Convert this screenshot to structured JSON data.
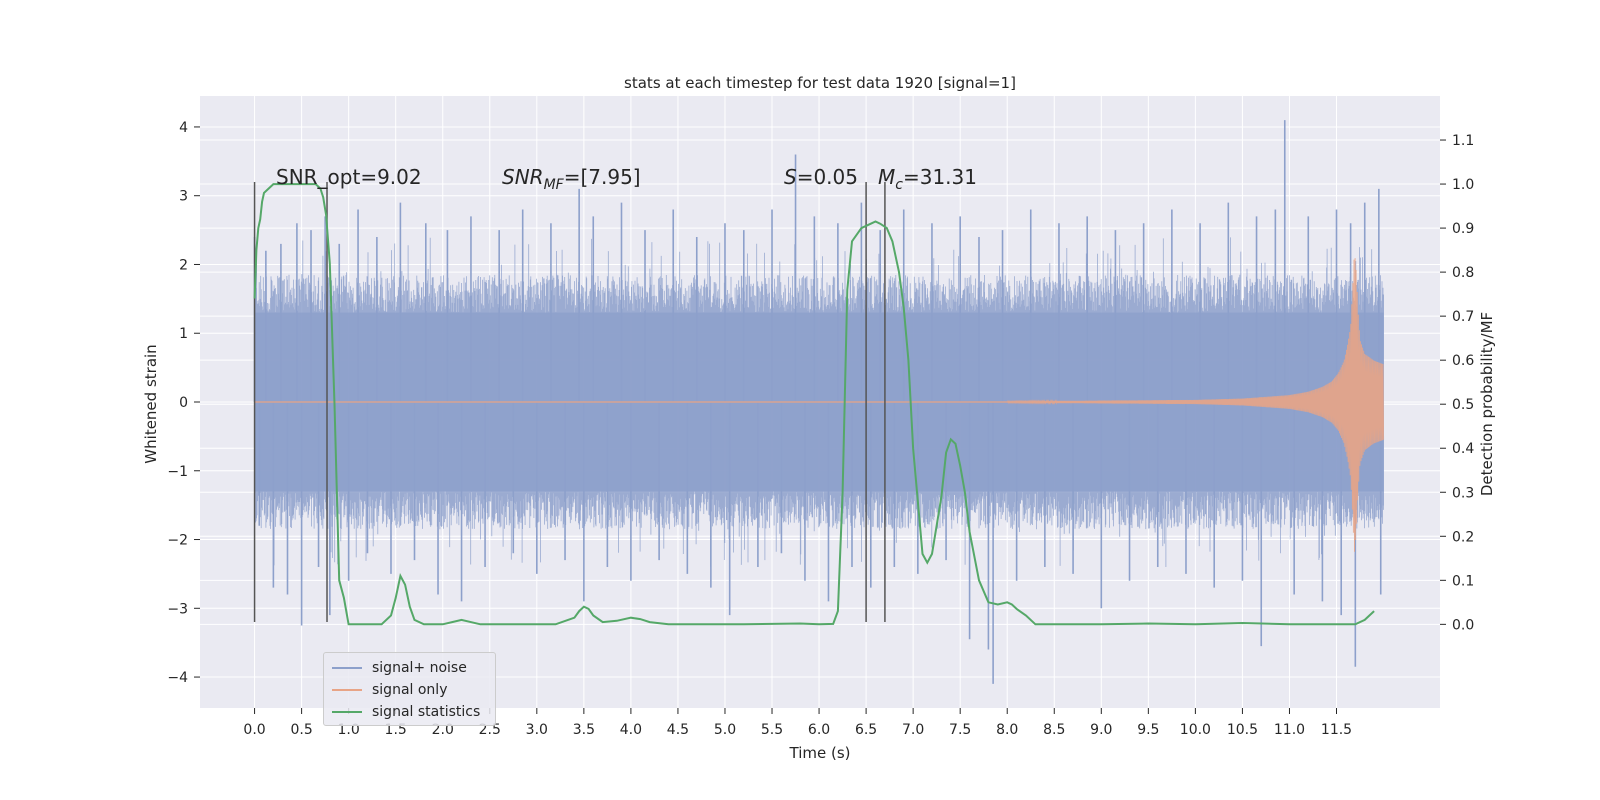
{
  "chart_data": {
    "type": "line",
    "title": "stats at each timestep for test data 1920 [signal=1]",
    "xlabel": "Time (s)",
    "ylabel": "Whitened strain",
    "ylabel_right": "Detection probability/MF",
    "xlim": [
      -0.58,
      12.6
    ],
    "ylim": [
      -4.45,
      4.45
    ],
    "ylim_right": [
      -0.19,
      1.2
    ],
    "x_ticks": [
      "0.0",
      "0.5",
      "1.0",
      "1.5",
      "2.0",
      "2.5",
      "3.0",
      "3.5",
      "4.0",
      "4.5",
      "5.0",
      "5.5",
      "6.0",
      "6.5",
      "7.0",
      "7.5",
      "8.0",
      "8.5",
      "9.0",
      "9.5",
      "10.0",
      "10.5",
      "11.0",
      "11.5"
    ],
    "x_tick_values": [
      0.0,
      0.5,
      1.0,
      1.5,
      2.0,
      2.5,
      3.0,
      3.5,
      4.0,
      4.5,
      5.0,
      5.5,
      6.0,
      6.5,
      7.0,
      7.5,
      8.0,
      8.5,
      9.0,
      9.5,
      10.0,
      10.5,
      11.0,
      11.5
    ],
    "y_ticks": [
      "4",
      "3",
      "2",
      "1",
      "0",
      "−1",
      "−2",
      "−3",
      "−4"
    ],
    "y_tick_values": [
      4,
      3,
      2,
      1,
      0,
      -1,
      -2,
      -3,
      -4
    ],
    "y_right_ticks": [
      "1.1",
      "1.0",
      "0.9",
      "0.8",
      "0.7",
      "0.6",
      "0.5",
      "0.4",
      "0.3",
      "0.2",
      "0.1",
      "0.0"
    ],
    "y_right_tick_values": [
      1.1,
      1.0,
      0.9,
      0.8,
      0.7,
      0.6,
      0.5,
      0.4,
      0.3,
      0.2,
      0.1,
      0.0
    ],
    "grid": true,
    "legend_position": "lower-left",
    "annotations": {
      "snr_opt": "SNR_opt=9.02",
      "snr_mf_base": "SNR",
      "snr_mf_sub": "MF",
      "snr_mf_value": "=[7.95]",
      "s_var": "S",
      "s_value": "=0.05",
      "mc_base": "M",
      "mc_sub": "c",
      "mc_value": "=31.31"
    },
    "vertical_lines": {
      "x": [
        0.0,
        0.77,
        6.5,
        6.7
      ],
      "y_range": [
        -3.2,
        3.2
      ]
    },
    "series": [
      {
        "name": "signal+ noise",
        "color": "#8da0cb",
        "x_range": [
          0.0,
          12.0
        ],
        "band": 1.3,
        "spikes": [
          {
            "x": 0.0,
            "y": 2.4
          },
          {
            "x": 0.05,
            "y": -1.8
          },
          {
            "x": 0.12,
            "y": 2.2
          },
          {
            "x": 0.2,
            "y": -2.7
          },
          {
            "x": 0.28,
            "y": 2.3
          },
          {
            "x": 0.35,
            "y": -2.8
          },
          {
            "x": 0.45,
            "y": 2.6
          },
          {
            "x": 0.5,
            "y": -3.25
          },
          {
            "x": 0.6,
            "y": 2.5
          },
          {
            "x": 0.68,
            "y": -2.4
          },
          {
            "x": 0.75,
            "y": 2.7
          },
          {
            "x": 0.8,
            "y": -3.1
          },
          {
            "x": 0.9,
            "y": 2.3
          },
          {
            "x": 1.0,
            "y": -2.6
          },
          {
            "x": 1.1,
            "y": 2.8
          },
          {
            "x": 1.2,
            "y": -2.2
          },
          {
            "x": 1.3,
            "y": 2.4
          },
          {
            "x": 1.45,
            "y": -2.5
          },
          {
            "x": 1.55,
            "y": 2.9
          },
          {
            "x": 1.7,
            "y": -2.3
          },
          {
            "x": 1.82,
            "y": 2.6
          },
          {
            "x": 1.95,
            "y": -2.8
          },
          {
            "x": 2.05,
            "y": 2.5
          },
          {
            "x": 2.2,
            "y": -2.9
          },
          {
            "x": 2.3,
            "y": 2.7
          },
          {
            "x": 2.45,
            "y": -2.4
          },
          {
            "x": 2.6,
            "y": 2.5
          },
          {
            "x": 2.75,
            "y": -2.2
          },
          {
            "x": 2.85,
            "y": 2.8
          },
          {
            "x": 3.0,
            "y": -2.5
          },
          {
            "x": 3.15,
            "y": 2.6
          },
          {
            "x": 3.3,
            "y": -2.3
          },
          {
            "x": 3.45,
            "y": 3.1
          },
          {
            "x": 3.5,
            "y": -2.9
          },
          {
            "x": 3.6,
            "y": 2.7
          },
          {
            "x": 3.75,
            "y": -2.4
          },
          {
            "x": 3.9,
            "y": 2.9
          },
          {
            "x": 4.0,
            "y": -2.6
          },
          {
            "x": 4.15,
            "y": 2.5
          },
          {
            "x": 4.3,
            "y": -2.3
          },
          {
            "x": 4.45,
            "y": 2.8
          },
          {
            "x": 4.6,
            "y": -2.5
          },
          {
            "x": 4.7,
            "y": 2.4
          },
          {
            "x": 4.85,
            "y": -2.7
          },
          {
            "x": 5.0,
            "y": 2.6
          },
          {
            "x": 5.05,
            "y": -3.1
          },
          {
            "x": 5.2,
            "y": 2.5
          },
          {
            "x": 5.35,
            "y": -2.4
          },
          {
            "x": 5.5,
            "y": 2.8
          },
          {
            "x": 5.6,
            "y": -2.2
          },
          {
            "x": 5.75,
            "y": 3.6
          },
          {
            "x": 5.85,
            "y": -2.6
          },
          {
            "x": 5.95,
            "y": 2.7
          },
          {
            "x": 6.1,
            "y": -2.9
          },
          {
            "x": 6.2,
            "y": 2.6
          },
          {
            "x": 6.35,
            "y": -2.4
          },
          {
            "x": 6.45,
            "y": 2.9
          },
          {
            "x": 6.55,
            "y": -2.7
          },
          {
            "x": 6.65,
            "y": 2.5
          },
          {
            "x": 6.8,
            "y": -2.4
          },
          {
            "x": 6.9,
            "y": 2.8
          },
          {
            "x": 7.05,
            "y": -2.5
          },
          {
            "x": 7.2,
            "y": 2.6
          },
          {
            "x": 7.35,
            "y": -2.3
          },
          {
            "x": 7.5,
            "y": 2.7
          },
          {
            "x": 7.6,
            "y": -3.45
          },
          {
            "x": 7.7,
            "y": 2.4
          },
          {
            "x": 7.8,
            "y": -3.6
          },
          {
            "x": 7.85,
            "y": -4.1
          },
          {
            "x": 7.95,
            "y": 2.5
          },
          {
            "x": 8.1,
            "y": -2.6
          },
          {
            "x": 8.25,
            "y": 2.8
          },
          {
            "x": 8.4,
            "y": -2.4
          },
          {
            "x": 8.55,
            "y": 2.6
          },
          {
            "x": 8.7,
            "y": -2.5
          },
          {
            "x": 8.85,
            "y": 2.7
          },
          {
            "x": 9.0,
            "y": -3.0
          },
          {
            "x": 9.15,
            "y": 2.5
          },
          {
            "x": 9.3,
            "y": -2.6
          },
          {
            "x": 9.45,
            "y": 2.6
          },
          {
            "x": 9.6,
            "y": -2.4
          },
          {
            "x": 9.75,
            "y": 2.8
          },
          {
            "x": 9.9,
            "y": -2.5
          },
          {
            "x": 10.05,
            "y": 2.6
          },
          {
            "x": 10.2,
            "y": -2.7
          },
          {
            "x": 10.35,
            "y": 2.9
          },
          {
            "x": 10.5,
            "y": -2.6
          },
          {
            "x": 10.65,
            "y": 2.7
          },
          {
            "x": 10.7,
            "y": -3.55
          },
          {
            "x": 10.85,
            "y": 2.8
          },
          {
            "x": 10.95,
            "y": 4.1
          },
          {
            "x": 11.05,
            "y": -2.8
          },
          {
            "x": 11.2,
            "y": 2.7
          },
          {
            "x": 11.35,
            "y": -2.9
          },
          {
            "x": 11.5,
            "y": 2.8
          },
          {
            "x": 11.55,
            "y": -3.1
          },
          {
            "x": 11.65,
            "y": 2.6
          },
          {
            "x": 11.7,
            "y": -3.85
          },
          {
            "x": 11.8,
            "y": 2.9
          },
          {
            "x": 11.95,
            "y": 3.1
          },
          {
            "x": 11.97,
            "y": -2.8
          }
        ]
      },
      {
        "name": "signal only",
        "color": "#e8a486",
        "x": [
          8.0,
          9.0,
          10.0,
          10.5,
          11.0,
          11.2,
          11.35,
          11.45,
          11.52,
          11.58,
          11.62,
          11.65,
          11.67,
          11.69,
          11.71,
          11.73,
          11.75,
          11.8,
          11.9,
          12.0
        ],
        "amplitude": [
          0.01,
          0.02,
          0.03,
          0.05,
          0.1,
          0.15,
          0.22,
          0.3,
          0.42,
          0.6,
          0.85,
          1.1,
          1.6,
          2.2,
          1.9,
          1.3,
          0.9,
          0.7,
          0.6,
          0.55
        ]
      },
      {
        "name": "signal statistics",
        "color": "#55a868",
        "x": [
          0.0,
          0.02,
          0.04,
          0.06,
          0.08,
          0.1,
          0.15,
          0.2,
          0.3,
          0.5,
          0.65,
          0.7,
          0.73,
          0.76,
          0.8,
          0.85,
          0.9,
          0.95,
          1.0,
          1.2,
          1.35,
          1.45,
          1.5,
          1.55,
          1.6,
          1.65,
          1.7,
          1.8,
          2.0,
          2.1,
          2.2,
          2.4,
          2.8,
          3.2,
          3.4,
          3.45,
          3.5,
          3.55,
          3.6,
          3.7,
          3.85,
          4.0,
          4.1,
          4.2,
          4.4,
          4.8,
          5.2,
          5.8,
          6.0,
          6.15,
          6.2,
          6.25,
          6.3,
          6.35,
          6.45,
          6.55,
          6.6,
          6.65,
          6.72,
          6.78,
          6.85,
          6.9,
          6.95,
          7.0,
          7.1,
          7.15,
          7.2,
          7.3,
          7.35,
          7.4,
          7.45,
          7.5,
          7.55,
          7.6,
          7.7,
          7.8,
          7.9,
          8.0,
          8.05,
          8.1,
          8.2,
          8.3,
          8.5,
          9.0,
          9.5,
          10.0,
          10.5,
          11.0,
          11.5,
          11.7,
          11.8,
          11.9
        ],
        "values": [
          0.74,
          0.85,
          0.9,
          0.92,
          0.96,
          0.98,
          0.99,
          1.0,
          1.0,
          1.0,
          1.0,
          0.99,
          0.97,
          0.93,
          0.82,
          0.5,
          0.1,
          0.06,
          0.0,
          0.0,
          0.0,
          0.02,
          0.06,
          0.11,
          0.09,
          0.04,
          0.01,
          0.0,
          0.0,
          0.005,
          0.01,
          0.0,
          0.0,
          0.0,
          0.015,
          0.03,
          0.04,
          0.035,
          0.02,
          0.005,
          0.008,
          0.015,
          0.012,
          0.005,
          0.0,
          0.0,
          0.0,
          0.002,
          0.0,
          0.001,
          0.03,
          0.3,
          0.76,
          0.87,
          0.9,
          0.91,
          0.915,
          0.91,
          0.9,
          0.87,
          0.8,
          0.72,
          0.6,
          0.4,
          0.16,
          0.14,
          0.16,
          0.29,
          0.39,
          0.42,
          0.41,
          0.36,
          0.3,
          0.21,
          0.1,
          0.05,
          0.045,
          0.05,
          0.045,
          0.035,
          0.02,
          0.0,
          0.0,
          0.0,
          0.002,
          0.0,
          0.003,
          0.0,
          0.0,
          0.0,
          0.01,
          0.03
        ]
      }
    ]
  },
  "legend": {
    "items": [
      {
        "label": "signal+ noise",
        "color": "#8da0cb"
      },
      {
        "label": "signal only",
        "color": "#e8a486"
      },
      {
        "label": "signal statistics",
        "color": "#55a868"
      }
    ]
  },
  "colors": {
    "plot_background": "#eaeaf2",
    "grid": "#ffffff",
    "vline": "#555555"
  }
}
